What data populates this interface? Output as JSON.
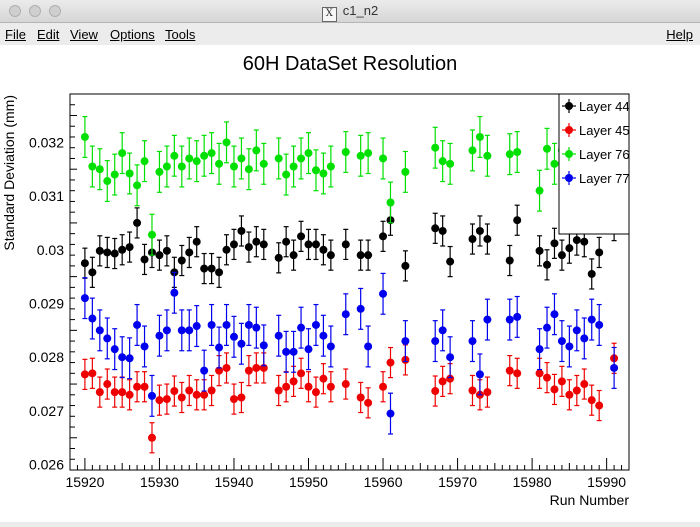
{
  "window": {
    "title": "c1_n2"
  },
  "menu": {
    "file": "File",
    "edit": "Edit",
    "view": "View",
    "options": "Options",
    "tools": "Tools",
    "help": "Help"
  },
  "chart_data": {
    "type": "scatter",
    "title": "60H DataSet Resolution",
    "xlabel": "Run Number",
    "ylabel": "Standard Deviation (mm)",
    "xlim": [
      15918,
      15993
    ],
    "ylim": [
      0.0259,
      0.0329
    ],
    "x_ticks": [
      15920,
      15930,
      15940,
      15950,
      15960,
      15970,
      15980,
      15990
    ],
    "x_tick_labels": [
      "15920",
      "15930",
      "15940",
      "15950",
      "15960",
      "15970",
      "15980",
      "15990"
    ],
    "y_ticks": [
      0.026,
      0.027,
      0.028,
      0.029,
      0.03,
      0.031,
      0.032
    ],
    "y_tick_labels": [
      "0.026",
      "0.027",
      "0.028",
      "0.029",
      "0.03",
      "0.031",
      "0.032"
    ],
    "grid": false,
    "legend_position": "top-right",
    "colors": {
      "Layer 44": "#000000",
      "Layer 45": "#ee0000",
      "Layer 76": "#00e000",
      "Layer 77": "#0000ee"
    },
    "x": [
      15920,
      15921,
      15922,
      15923,
      15924,
      15925,
      15926,
      15927,
      15928,
      15929,
      15930,
      15931,
      15932,
      15933,
      15934,
      15935,
      15936,
      15937,
      15938,
      15939,
      15940,
      15941,
      15942,
      15943,
      15944,
      15946,
      15947,
      15948,
      15949,
      15950,
      15951,
      15952,
      15953,
      15955,
      15957,
      15958,
      15960,
      15961,
      15963,
      15967,
      15968,
      15969,
      15972,
      15973,
      15974,
      15977,
      15978,
      15981,
      15982,
      15983,
      15984,
      15985,
      15986,
      15987,
      15988,
      15989,
      15991
    ],
    "series": [
      {
        "name": "Layer 44",
        "values": [
          0.02975,
          0.02958,
          0.02998,
          0.02995,
          0.02993,
          0.03,
          0.03005,
          0.0305,
          0.02982,
          0.02995,
          0.0299,
          0.02998,
          0.02958,
          0.0298,
          0.02995,
          0.03015,
          0.02965,
          0.02965,
          0.02958,
          0.03,
          0.0301,
          0.03035,
          0.03005,
          0.03015,
          0.0301,
          0.02985,
          0.03015,
          0.0299,
          0.03025,
          0.0301,
          0.0301,
          0.03,
          0.0299,
          0.0301,
          0.0299,
          0.0299,
          0.03025,
          0.03055,
          0.0297,
          0.0304,
          0.03035,
          0.02978,
          0.0302,
          0.03035,
          0.0302,
          0.0298,
          0.03055,
          0.02998,
          0.02972,
          0.03012,
          0.0299,
          0.03003,
          0.03018,
          0.03015,
          0.02955,
          0.02995,
          0.03045
        ],
        "errors": [
          0.00028,
          0.00028,
          0.00028,
          0.00028,
          0.00028,
          0.00028,
          0.00028,
          0.00028,
          0.00028,
          0.00028,
          0.00028,
          0.00028,
          0.00028,
          0.00028,
          0.00028,
          0.00028,
          0.00028,
          0.00028,
          0.00028,
          0.00028,
          0.00028,
          0.00028,
          0.00028,
          0.00028,
          0.00028,
          0.00028,
          0.00028,
          0.00028,
          0.00028,
          0.00028,
          0.00028,
          0.00028,
          0.00028,
          0.00028,
          0.00028,
          0.00028,
          0.00028,
          0.00028,
          0.00028,
          0.00028,
          0.00028,
          0.00028,
          0.00028,
          0.00028,
          0.00028,
          0.00028,
          0.00028,
          0.00028,
          0.00028,
          0.00028,
          0.00028,
          0.00028,
          0.00028,
          0.00028,
          0.00028,
          0.00028,
          0.00028
        ]
      },
      {
        "name": "Layer 45",
        "values": [
          0.02768,
          0.0277,
          0.02735,
          0.0275,
          0.02735,
          0.02735,
          0.0273,
          0.02745,
          0.02745,
          0.0265,
          0.0272,
          0.02722,
          0.02737,
          0.02725,
          0.02738,
          0.0273,
          0.0273,
          0.02738,
          0.02775,
          0.0278,
          0.02722,
          0.02725,
          0.02775,
          0.0278,
          0.0278,
          0.02738,
          0.02745,
          0.02755,
          0.0277,
          0.02745,
          0.02735,
          0.0276,
          0.02745,
          0.0275,
          0.02725,
          0.02715,
          0.02745,
          0.0279,
          0.02795,
          0.02737,
          0.02755,
          0.0276,
          0.02738,
          0.0273,
          0.02735,
          0.02775,
          0.0277,
          0.0277,
          0.02762,
          0.0274,
          0.02755,
          0.0273,
          0.02738,
          0.0275,
          0.0272,
          0.0271,
          0.02798
        ],
        "errors": [
          0.00028,
          0.00028,
          0.00028,
          0.00028,
          0.00028,
          0.00028,
          0.00028,
          0.00028,
          0.00028,
          0.00028,
          0.00028,
          0.00028,
          0.00028,
          0.00028,
          0.00028,
          0.00028,
          0.00028,
          0.00028,
          0.00028,
          0.00028,
          0.00028,
          0.00028,
          0.00028,
          0.00028,
          0.00028,
          0.00028,
          0.00028,
          0.00028,
          0.00028,
          0.00028,
          0.00028,
          0.00028,
          0.00028,
          0.00028,
          0.00028,
          0.00028,
          0.00028,
          0.00028,
          0.00028,
          0.00028,
          0.00028,
          0.00028,
          0.00028,
          0.00028,
          0.00028,
          0.00028,
          0.00028,
          0.00028,
          0.00028,
          0.00028,
          0.00028,
          0.00028,
          0.00028,
          0.00028,
          0.00028,
          0.00028,
          0.00028
        ]
      },
      {
        "name": "Layer 76",
        "values": [
          0.0321,
          0.03155,
          0.0315,
          0.03128,
          0.0314,
          0.0318,
          0.03142,
          0.0312,
          0.03165,
          0.03028,
          0.03145,
          0.03155,
          0.03175,
          0.03155,
          0.0317,
          0.03165,
          0.03175,
          0.0318,
          0.0316,
          0.032,
          0.03155,
          0.0317,
          0.0315,
          0.03185,
          0.0316,
          0.0317,
          0.0314,
          0.03155,
          0.0317,
          0.0318,
          0.03148,
          0.03142,
          0.03155,
          0.03182,
          0.03175,
          0.0318,
          0.0317,
          0.03088,
          0.03145,
          0.0319,
          0.03165,
          0.0316,
          0.03185,
          0.0321,
          0.03175,
          0.03178,
          0.03182,
          0.0311,
          0.03188,
          0.0316,
          0.03185,
          0.0318,
          0.03185,
          0.0318,
          0.0319,
          0.03178,
          0.0312
        ],
        "errors": [
          0.00038,
          0.00038,
          0.00038,
          0.00038,
          0.00038,
          0.00038,
          0.00038,
          0.00038,
          0.00038,
          0.00038,
          0.00038,
          0.00038,
          0.00038,
          0.00038,
          0.00038,
          0.00038,
          0.00038,
          0.00038,
          0.00038,
          0.00038,
          0.00038,
          0.00038,
          0.00038,
          0.00038,
          0.00038,
          0.00038,
          0.00038,
          0.00038,
          0.00038,
          0.00038,
          0.00038,
          0.00038,
          0.00038,
          0.00038,
          0.00038,
          0.00038,
          0.00038,
          0.00038,
          0.00038,
          0.00038,
          0.00038,
          0.00038,
          0.00038,
          0.00038,
          0.00038,
          0.00038,
          0.00038,
          0.00038,
          0.00038,
          0.00038,
          0.00038,
          0.00038,
          0.00038,
          0.00038,
          0.00038,
          0.00038,
          0.00038
        ]
      },
      {
        "name": "Layer 77",
        "values": [
          0.0291,
          0.02872,
          0.0285,
          0.02835,
          0.02815,
          0.028,
          0.02798,
          0.0286,
          0.0282,
          0.02728,
          0.0284,
          0.0285,
          0.0292,
          0.0285,
          0.0285,
          0.02858,
          0.02775,
          0.0286,
          0.02818,
          0.0286,
          0.02838,
          0.02825,
          0.0286,
          0.02855,
          0.02822,
          0.0284,
          0.0281,
          0.0281,
          0.02855,
          0.02815,
          0.0286,
          0.0284,
          0.0282,
          0.0288,
          0.0289,
          0.0282,
          0.02918,
          0.02695,
          0.0283,
          0.0283,
          0.0285,
          0.028,
          0.0283,
          0.02768,
          0.0287,
          0.0287,
          0.02875,
          0.02815,
          0.02855,
          0.0288,
          0.0283,
          0.0282,
          0.0285,
          0.02835,
          0.0287,
          0.0286,
          0.0278
        ],
        "errors": [
          0.00038,
          0.00038,
          0.00038,
          0.00038,
          0.00038,
          0.00038,
          0.00038,
          0.00038,
          0.00038,
          0.00038,
          0.00038,
          0.00038,
          0.00038,
          0.00038,
          0.00038,
          0.00038,
          0.00038,
          0.00038,
          0.00038,
          0.00038,
          0.00038,
          0.00038,
          0.00038,
          0.00038,
          0.00038,
          0.00038,
          0.00038,
          0.00038,
          0.00038,
          0.00038,
          0.00038,
          0.00038,
          0.00038,
          0.00038,
          0.00038,
          0.00038,
          0.00038,
          0.00038,
          0.00038,
          0.00038,
          0.00038,
          0.00038,
          0.00038,
          0.00038,
          0.00038,
          0.00038,
          0.00038,
          0.00038,
          0.00038,
          0.00038,
          0.00038,
          0.00038,
          0.00038,
          0.00038,
          0.00038,
          0.00038,
          0.00038
        ]
      }
    ]
  }
}
